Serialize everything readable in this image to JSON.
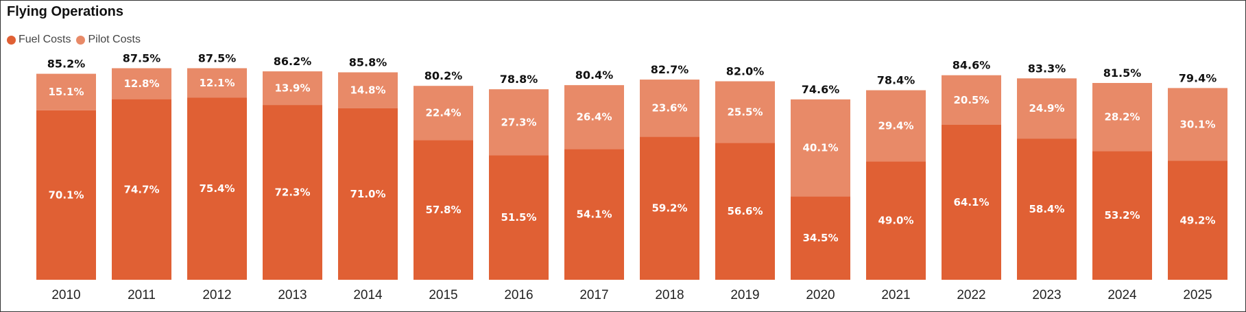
{
  "chart_data": {
    "type": "bar",
    "stacked": true,
    "title": "Flying Operations",
    "xlabel": "",
    "ylabel": "",
    "categories": [
      "2010",
      "2011",
      "2012",
      "2013",
      "2014",
      "2015",
      "2016",
      "2017",
      "2018",
      "2019",
      "2020",
      "2021",
      "2022",
      "2023",
      "2024",
      "2025"
    ],
    "series": [
      {
        "name": "Fuel Costs",
        "color": "#E06034",
        "values": [
          70.1,
          74.7,
          75.4,
          72.3,
          71.0,
          57.8,
          51.5,
          54.1,
          59.2,
          56.6,
          34.5,
          49.0,
          64.1,
          58.4,
          53.2,
          49.2
        ],
        "labels": [
          "70.1%",
          "74.7%",
          "75.4%",
          "72.3%",
          "71.0%",
          "57.8%",
          "51.5%",
          "54.1%",
          "59.2%",
          "56.6%",
          "34.5%",
          "49.0%",
          "64.1%",
          "58.4%",
          "53.2%",
          "49.2%"
        ]
      },
      {
        "name": "Pilot Costs",
        "color": "#E88A68",
        "values": [
          15.1,
          12.8,
          12.1,
          13.9,
          14.8,
          22.4,
          27.3,
          26.4,
          23.6,
          25.5,
          40.1,
          29.4,
          20.5,
          24.9,
          28.2,
          30.1
        ],
        "labels": [
          "15.1%",
          "12.8%",
          "12.1%",
          "13.9%",
          "14.8%",
          "22.4%",
          "27.3%",
          "26.4%",
          "23.6%",
          "25.5%",
          "40.1%",
          "29.4%",
          "20.5%",
          "24.9%",
          "28.2%",
          "30.1%"
        ]
      }
    ],
    "totals": [
      85.2,
      87.5,
      87.5,
      86.2,
      85.8,
      80.2,
      78.8,
      80.4,
      82.7,
      82.0,
      74.6,
      78.4,
      84.6,
      83.3,
      81.5,
      79.4
    ],
    "total_labels": [
      "85.2%",
      "87.5%",
      "87.5%",
      "86.2%",
      "85.8%",
      "80.2%",
      "78.8%",
      "80.4%",
      "82.7%",
      "82.0%",
      "74.6%",
      "78.4%",
      "84.6%",
      "83.3%",
      "81.5%",
      "79.4%"
    ],
    "ylim": [
      0,
      100
    ],
    "grid": false,
    "legend": "top-left"
  }
}
